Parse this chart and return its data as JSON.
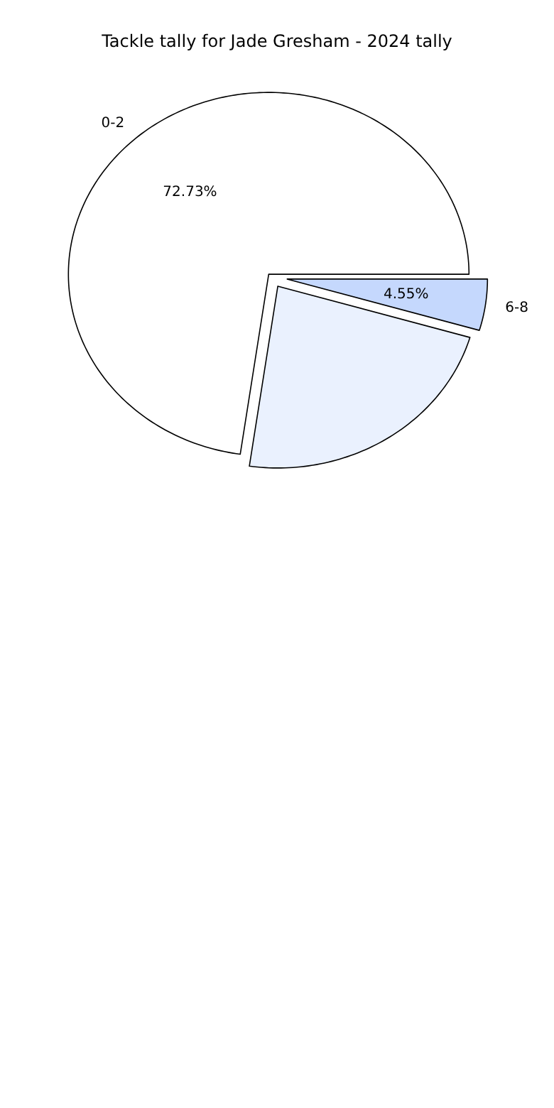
{
  "chart_data": {
    "type": "pie",
    "title": "Tackle tally for Jade Gresham - 2024 tally",
    "categories": [
      "0-2",
      null,
      "6-8"
    ],
    "values": [
      72.73,
      22.72,
      4.55
    ],
    "value_labels": [
      "72.73%",
      null,
      "4.55%"
    ],
    "colors": [
      "#ffffff",
      "#eaf1fe",
      "#c5d8fd"
    ]
  }
}
